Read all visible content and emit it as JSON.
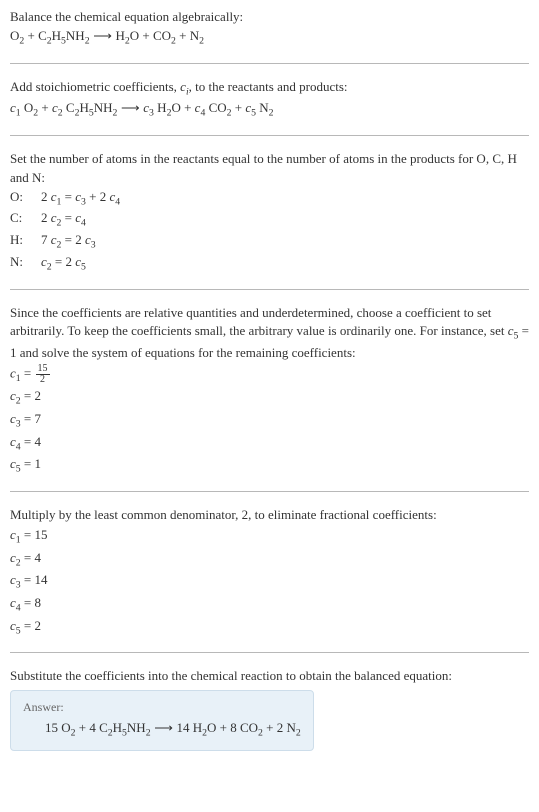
{
  "intro": {
    "line1": "Balance the chemical equation algebraically:",
    "eq_lhs1": "O",
    "eq_lhs1_sub": "2",
    "plus": " + ",
    "eq_lhs2a": "C",
    "eq_lhs2a_sub": "2",
    "eq_lhs2b": "H",
    "eq_lhs2b_sub": "5",
    "eq_lhs2c": "NH",
    "eq_lhs2c_sub": "2",
    "arrow": " ⟶ ",
    "eq_rhs1a": "H",
    "eq_rhs1a_sub": "2",
    "eq_rhs1b": "O",
    "eq_rhs2a": "CO",
    "eq_rhs2a_sub": "2",
    "eq_rhs3a": "N",
    "eq_rhs3a_sub": "2"
  },
  "step2": {
    "line_a": "Add stoichiometric coefficients, ",
    "ci": "c",
    "ci_sub": "i",
    "line_b": ", to the reactants and products:",
    "c1": "c",
    "c1_sub": "1",
    "c2": "c",
    "c2_sub": "2",
    "c3": "c",
    "c3_sub": "3",
    "c4": "c",
    "c4_sub": "4",
    "c5": "c",
    "c5_sub": "5"
  },
  "step3": {
    "line": "Set the number of atoms in the reactants equal to the number of atoms in the products for O, C, H and N:",
    "rows": [
      {
        "el": "O:",
        "lhs_coef": "2 ",
        "lhs_c": "c",
        "lhs_sub": "1",
        "eq": " = ",
        "r1_c": "c",
        "r1_sub": "3",
        "plus": " + 2 ",
        "r2_c": "c",
        "r2_sub": "4"
      },
      {
        "el": "C:",
        "lhs_coef": "2 ",
        "lhs_c": "c",
        "lhs_sub": "2",
        "eq": " = ",
        "r1_c": "c",
        "r1_sub": "4"
      },
      {
        "el": "H:",
        "lhs_coef": "7 ",
        "lhs_c": "c",
        "lhs_sub": "2",
        "eq": " = 2 ",
        "r1_c": "c",
        "r1_sub": "3"
      },
      {
        "el": "N:",
        "lhs_coef": "",
        "lhs_c": "c",
        "lhs_sub": "2",
        "eq": " = 2 ",
        "r1_c": "c",
        "r1_sub": "5"
      }
    ]
  },
  "step4": {
    "text": "Since the coefficients are relative quantities and underdetermined, choose a coefficient to set arbitrarily. To keep the coefficients small, the arbitrary value is ordinarily one. For instance, set ",
    "set_c": "c",
    "set_sub": "5",
    "set_val": " = 1",
    "text2": " and solve the system of equations for the remaining coefficients:",
    "c1": {
      "c": "c",
      "sub": "1",
      "eq": " = ",
      "num": "15",
      "den": "2"
    },
    "c2": {
      "c": "c",
      "sub": "2",
      "val": " = 2"
    },
    "c3": {
      "c": "c",
      "sub": "3",
      "val": " = 7"
    },
    "c4": {
      "c": "c",
      "sub": "4",
      "val": " = 4"
    },
    "c5": {
      "c": "c",
      "sub": "5",
      "val": " = 1"
    }
  },
  "step5": {
    "text": "Multiply by the least common denominator, 2, to eliminate fractional coefficients:",
    "c1": {
      "c": "c",
      "sub": "1",
      "val": " = 15"
    },
    "c2": {
      "c": "c",
      "sub": "2",
      "val": " = 4"
    },
    "c3": {
      "c": "c",
      "sub": "3",
      "val": " = 14"
    },
    "c4": {
      "c": "c",
      "sub": "4",
      "val": " = 8"
    },
    "c5": {
      "c": "c",
      "sub": "5",
      "val": " = 2"
    }
  },
  "step6": {
    "text": "Substitute the coefficients into the chemical reaction to obtain the balanced equation:"
  },
  "answer": {
    "label": "Answer:",
    "n1": "15 ",
    "s1a": "O",
    "s1a_sub": "2",
    "plus1": " + 4 ",
    "s2a": "C",
    "s2a_sub": "2",
    "s2b": "H",
    "s2b_sub": "5",
    "s2c": "NH",
    "s2c_sub": "2",
    "arrow": " ⟶ ",
    "n3": "14 ",
    "s3a": "H",
    "s3a_sub": "2",
    "s3b": "O",
    "plus2": " + 8 ",
    "s4a": "CO",
    "s4a_sub": "2",
    "plus3": " + 2 ",
    "s5a": "N",
    "s5a_sub": "2"
  },
  "colors": {
    "text": "#333333",
    "separator": "#b8b8b8",
    "answer_bg": "#e8f1f8",
    "answer_border": "#cdddea"
  }
}
